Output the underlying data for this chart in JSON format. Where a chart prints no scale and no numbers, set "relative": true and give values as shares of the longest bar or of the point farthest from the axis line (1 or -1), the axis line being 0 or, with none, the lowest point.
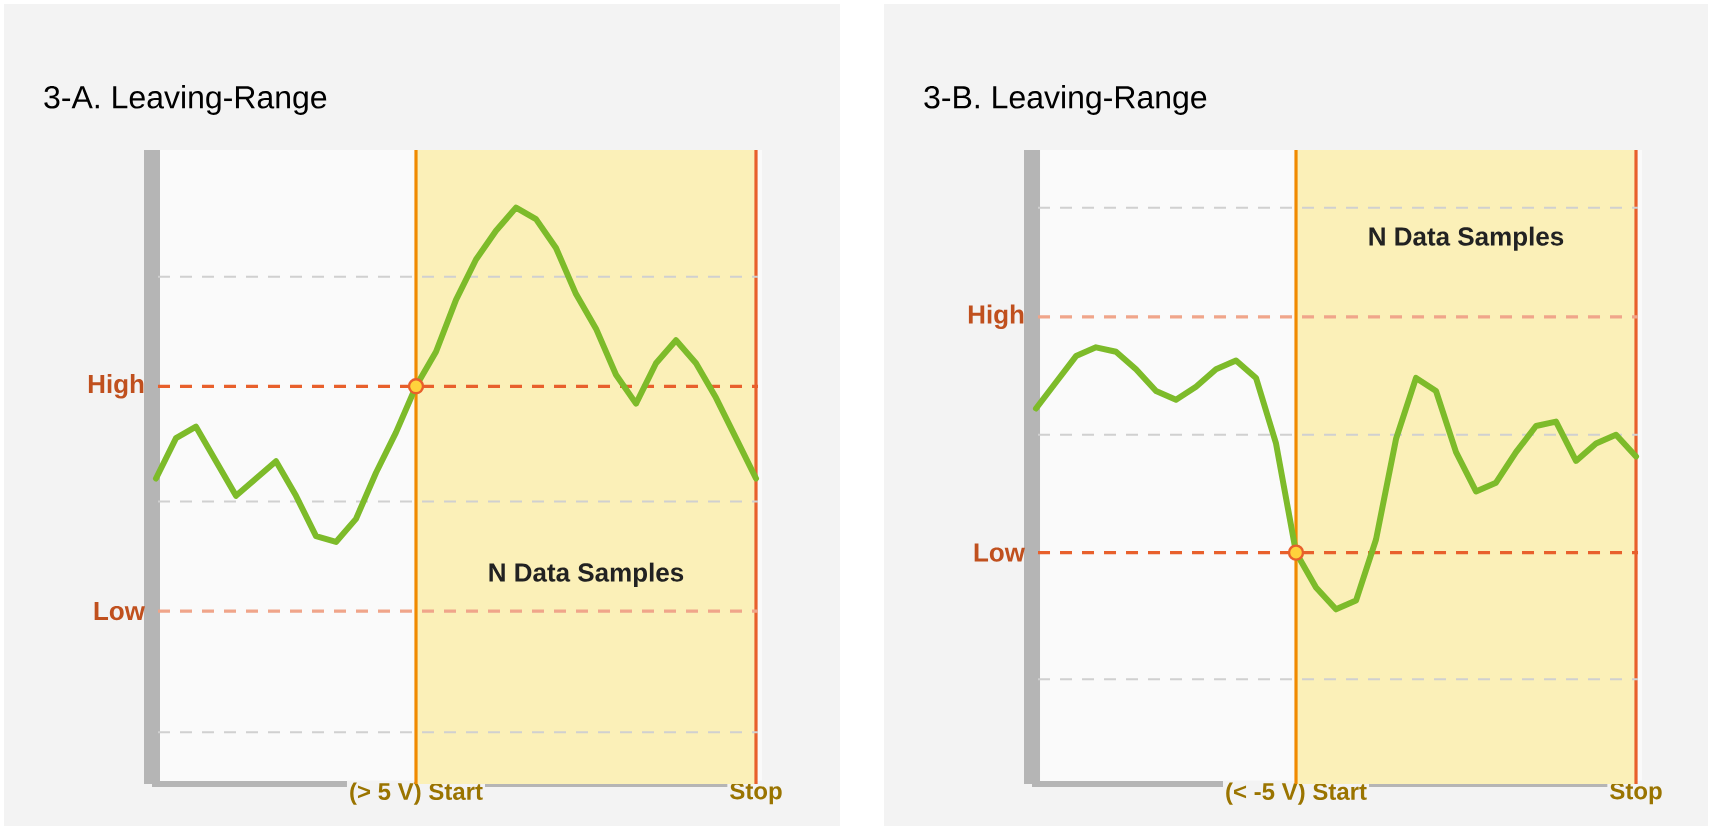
{
  "chart_data": [
    {
      "type": "line",
      "title": "3-A. Leaving-Range",
      "relative": true,
      "categories": [
        null,
        null,
        null,
        null,
        null,
        null,
        null,
        null,
        null,
        null,
        null,
        null,
        null,
        "(> 5 V) Start",
        null,
        null,
        null,
        null,
        null,
        null,
        null,
        null,
        null,
        null,
        null,
        null,
        null,
        null,
        null,
        null,
        "Stop"
      ],
      "series": [
        {
          "color": "#7dbb2a",
          "values": [
            0.53,
            0.6,
            0.62,
            0.56,
            0.5,
            0.53,
            0.56,
            0.5,
            0.43,
            0.42,
            0.46,
            0.54,
            0.61,
            0.69,
            0.75,
            0.84,
            0.91,
            0.96,
            1.0,
            0.98,
            0.93,
            0.85,
            0.79,
            0.71,
            0.66,
            0.73,
            0.77,
            0.73,
            0.67,
            0.6,
            0.53
          ]
        },
        {
          "type": "scatter",
          "color": "#e8602c",
          "values": [
            null,
            null,
            null,
            null,
            null,
            null,
            null,
            null,
            null,
            null,
            null,
            null,
            null,
            0.69,
            null,
            null,
            null,
            null,
            null,
            null,
            null,
            null,
            null,
            null,
            null,
            null,
            null,
            null,
            null,
            null,
            null
          ]
        }
      ],
      "ref_lines": [
        {
          "axis": "y",
          "value": 0.88,
          "color": "#d0d0d0",
          "line_style": "dashed"
        },
        {
          "axis": "y",
          "value": 0.49,
          "color": "#d0d0d0",
          "line_style": "dashed"
        },
        {
          "axis": "y",
          "value": 0.09,
          "color": "#d0d0d0",
          "line_style": "dashed"
        },
        {
          "axis": "y",
          "value": 0.69,
          "label": "High",
          "color": "#e8602c",
          "line_style": "dashed"
        },
        {
          "axis": "y",
          "value": 0.3,
          "label": "Low",
          "color": "#f0a58a",
          "line_style": "dashed"
        }
      ],
      "annotations": [
        "N Data Samples"
      ]
    },
    {
      "type": "line",
      "title": "3-B. Leaving-Range",
      "relative": true,
      "categories": [
        null,
        null,
        null,
        null,
        null,
        null,
        null,
        null,
        null,
        null,
        null,
        null,
        null,
        "(< -5 V) Start",
        null,
        null,
        null,
        null,
        null,
        null,
        null,
        null,
        null,
        null,
        null,
        null,
        null,
        null,
        null,
        null,
        "Stop"
      ],
      "series": [
        {
          "color": "#7dbb2a",
          "values": [
            0.86,
            0.92,
            0.98,
            1.0,
            0.99,
            0.95,
            0.9,
            0.88,
            0.91,
            0.95,
            0.97,
            0.93,
            0.78,
            0.53,
            0.45,
            0.4,
            0.42,
            0.56,
            0.79,
            0.93,
            0.9,
            0.76,
            0.67,
            0.69,
            0.76,
            0.82,
            0.83,
            0.74,
            0.78,
            0.8,
            0.75
          ]
        },
        {
          "type": "scatter",
          "color": "#e8602c",
          "values": [
            null,
            null,
            null,
            null,
            null,
            null,
            null,
            null,
            null,
            null,
            null,
            null,
            null,
            0.53,
            null,
            null,
            null,
            null,
            null,
            null,
            null,
            null,
            null,
            null,
            null,
            null,
            null,
            null,
            null,
            null,
            null
          ]
        }
      ],
      "ref_lines": [
        {
          "axis": "y",
          "value": 1.32,
          "color": "#d0d0d0",
          "line_style": "dashed"
        },
        {
          "axis": "y",
          "value": 0.8,
          "color": "#d0d0d0",
          "line_style": "dashed"
        },
        {
          "axis": "y",
          "value": 0.24,
          "color": "#d0d0d0",
          "line_style": "dashed"
        },
        {
          "axis": "y",
          "value": 1.07,
          "label": "High",
          "color": "#f0a58a",
          "line_style": "dashed"
        },
        {
          "axis": "y",
          "value": 0.53,
          "label": "Low",
          "color": "#e8602c",
          "line_style": "dashed"
        }
      ],
      "annotations": [
        "N Data Samples"
      ]
    }
  ]
}
